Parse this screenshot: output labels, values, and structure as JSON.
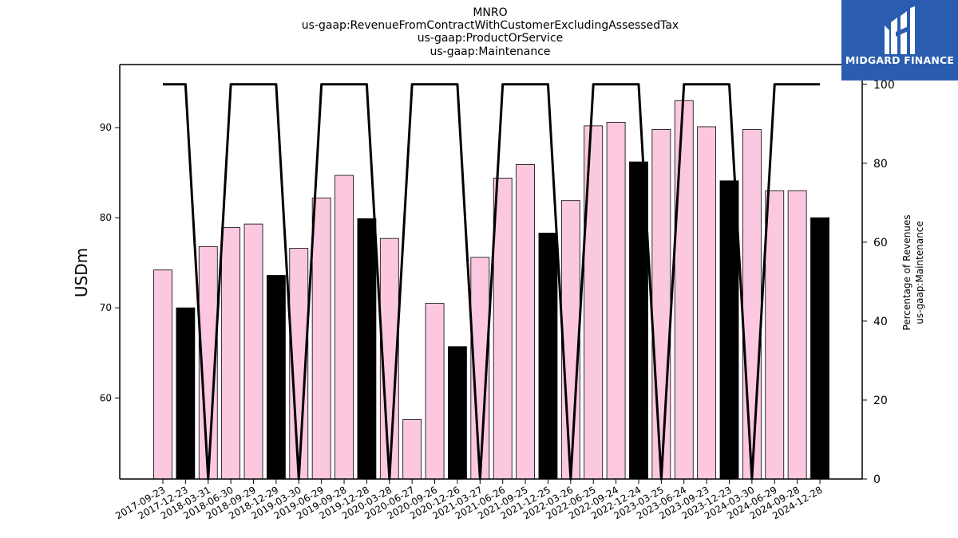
{
  "brand": {
    "name": "MIDGARD FINANCE",
    "bg_color": "#2a5db0",
    "icon": "midgard-logo-icon"
  },
  "chart_data": {
    "type": "bar",
    "title": [
      "MNRO",
      "us-gaap:RevenueFromContractWithCustomerExcludingAssessedTax",
      "us-gaap:ProductOrService",
      "us-gaap:Maintenance"
    ],
    "ylabel": "USDm",
    "ylabel_right": [
      "Percentage of Revenues",
      "us-gaap:Maintenance"
    ],
    "ylim": [
      51,
      97
    ],
    "ylim_right": [
      0,
      105
    ],
    "yticks": [
      60,
      70,
      80,
      90
    ],
    "yticks_right": [
      0,
      20,
      40,
      60,
      80,
      100
    ],
    "categories": [
      "2017-09-23",
      "2017-12-23",
      "2018-03-31",
      "2018-06-30",
      "2018-09-29",
      "2018-12-29",
      "2019-03-30",
      "2019-06-29",
      "2019-09-28",
      "2019-12-28",
      "2020-03-28",
      "2020-06-27",
      "2020-09-26",
      "2020-12-26",
      "2021-03-27",
      "2021-06-26",
      "2021-09-25",
      "2021-12-25",
      "2022-03-26",
      "2022-06-25",
      "2022-09-24",
      "2022-12-24",
      "2023-03-25",
      "2023-06-24",
      "2023-09-23",
      "2023-12-23",
      "2024-03-30",
      "2024-06-29",
      "2024-09-28",
      "2024-12-28"
    ],
    "series": [
      {
        "kind": "bar",
        "values": [
          74.2,
          70.0,
          null,
          78.9,
          79.3,
          73.6,
          76.6,
          82.2,
          84.7,
          79.9,
          77.7,
          57.6,
          70.5,
          65.7,
          75.6,
          84.4,
          85.9,
          78.3,
          81.9,
          90.2,
          90.6,
          86.2,
          89.8,
          93.0,
          90.1,
          84.1,
          89.8,
          83.0,
          83.0,
          80.0
        ],
        "colors": [
          "#fcc8e0",
          "#000000",
          "#fcc8e0",
          "#fcc8e0",
          "#fcc8e0",
          "#000000",
          "#fcc8e0",
          "#fcc8e0",
          "#fcc8e0",
          "#000000",
          "#fcc8e0",
          "#fcc8e0",
          "#fcc8e0",
          "#000000",
          "#fcc8e0",
          "#fcc8e0",
          "#fcc8e0",
          "#000000",
          "#fcc8e0",
          "#fcc8e0",
          "#fcc8e0",
          "#000000",
          "#fcc8e0",
          "#fcc8e0",
          "#fcc8e0",
          "#000000",
          "#fcc8e0",
          "#fcc8e0",
          "#fcc8e0",
          "#000000"
        ]
      },
      {
        "kind": "line",
        "axis": "right",
        "color": "#000000",
        "values": [
          100,
          100,
          0,
          100,
          100,
          100,
          0,
          100,
          100,
          100,
          0,
          100,
          100,
          100,
          0,
          100,
          100,
          100,
          0,
          100,
          100,
          100,
          0,
          100,
          100,
          100,
          0,
          100,
          100,
          100
        ]
      }
    ],
    "bar3_value": 76.8,
    "grid": false,
    "legend": "none"
  }
}
